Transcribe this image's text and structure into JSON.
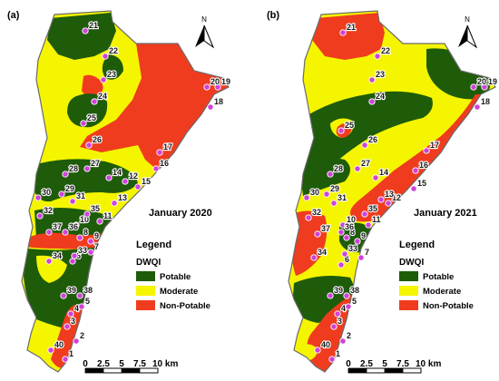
{
  "colors": {
    "potable": "#1e5c0a",
    "moderate": "#f5f500",
    "non_potable": "#f03c1e",
    "point_fill": "#d042d8",
    "outline": "#6a6a6a"
  },
  "panels": [
    {
      "id": "a",
      "label": "(a)",
      "date": "January 2020"
    },
    {
      "id": "b",
      "label": "(b)",
      "date": "January 2021"
    }
  ],
  "legend": {
    "title": "Legend",
    "subtitle": "DWQI",
    "items": [
      {
        "label": "Potable",
        "color": "#1e5c0a"
      },
      {
        "label": "Moderate",
        "color": "#f5f500"
      },
      {
        "label": "Non-Potable",
        "color": "#f03c1e"
      }
    ]
  },
  "north_arrow": {
    "label": "N"
  },
  "scale_bar": {
    "ticks": [
      "0",
      "2.5",
      "5",
      "7.5",
      "10 km"
    ]
  },
  "points": [
    "1",
    "2",
    "3",
    "4",
    "5",
    "6",
    "7",
    "8",
    "9",
    "10",
    "11",
    "12",
    "13",
    "14",
    "15",
    "16",
    "17",
    "18",
    "19",
    "20",
    "21",
    "22",
    "23",
    "24",
    "25",
    "26",
    "27",
    "28",
    "29",
    "30",
    "31",
    "32",
    "33",
    "34",
    "35",
    "36",
    "37",
    "38",
    "39",
    "40"
  ]
}
